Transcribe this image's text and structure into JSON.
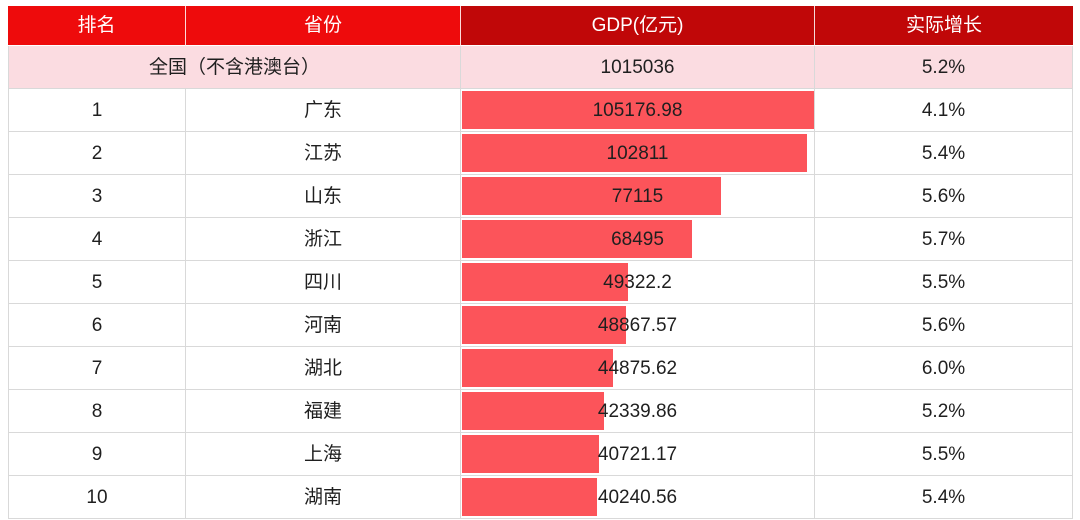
{
  "colors": {
    "header-red": "#EE0B0C",
    "header-dark-red": "#C00708",
    "national-pink": "#FBDCE1",
    "bar-red": "#FC545A",
    "grid-line": "#D9D9D9"
  },
  "table": {
    "columns": [
      {
        "label": "排名"
      },
      {
        "label": "省份"
      },
      {
        "label": "GDP(亿元)"
      },
      {
        "label": "实际增长"
      }
    ],
    "national": {
      "label": "全国（不含港澳台）",
      "gdp": "1015036",
      "growth": "5.2%"
    },
    "rows": [
      {
        "rank": "1",
        "province": "广东",
        "gdp": "105176.98",
        "growth": "4.1%",
        "bar_pct": 100
      },
      {
        "rank": "2",
        "province": "江苏",
        "gdp": "102811",
        "growth": "5.4%",
        "bar_pct": 97.75
      },
      {
        "rank": "3",
        "province": "山东",
        "gdp": "77115",
        "growth": "5.6%",
        "bar_pct": 73.32
      },
      {
        "rank": "4",
        "province": "浙江",
        "gdp": "68495",
        "growth": "5.7%",
        "bar_pct": 65.12
      },
      {
        "rank": "5",
        "province": "四川",
        "gdp": "49322.2",
        "growth": "5.5%",
        "bar_pct": 46.9
      },
      {
        "rank": "6",
        "province": "河南",
        "gdp": "48867.57",
        "growth": "5.6%",
        "bar_pct": 46.46
      },
      {
        "rank": "7",
        "province": "湖北",
        "gdp": "44875.62",
        "growth": "6.0%",
        "bar_pct": 42.67
      },
      {
        "rank": "8",
        "province": "福建",
        "gdp": "42339.86",
        "growth": "5.2%",
        "bar_pct": 40.26
      },
      {
        "rank": "9",
        "province": "上海",
        "gdp": "40721.17",
        "growth": "5.5%",
        "bar_pct": 38.72
      },
      {
        "rank": "10",
        "province": "湖南",
        "gdp": "40240.56",
        "growth": "5.4%",
        "bar_pct": 38.26
      }
    ]
  },
  "chart_data": {
    "type": "bar",
    "orientation": "horizontal",
    "title": "GDP(亿元)",
    "categories": [
      "全国（不含港澳台）",
      "广东",
      "江苏",
      "山东",
      "浙江",
      "四川",
      "河南",
      "湖北",
      "福建",
      "上海",
      "湖南"
    ],
    "series": [
      {
        "name": "GDP(亿元)",
        "values": [
          1015036,
          105176.98,
          102811,
          77115,
          68495,
          49322.2,
          48867.57,
          44875.62,
          42339.86,
          40721.17,
          40240.56
        ]
      },
      {
        "name": "实际增长",
        "values": [
          "5.2%",
          "4.1%",
          "5.4%",
          "5.6%",
          "5.7%",
          "5.5%",
          "5.6%",
          "6.0%",
          "5.2%",
          "5.5%",
          "5.4%"
        ]
      }
    ],
    "ranks": [
      "",
      "1",
      "2",
      "3",
      "4",
      "5",
      "6",
      "7",
      "8",
      "9",
      "10"
    ],
    "bar_scale_max": 105176.98,
    "bar_note": "bars drawn only for ranked provinces, width proportional to GDP with 广东 = full column",
    "legend_position": "none",
    "grid": true
  }
}
